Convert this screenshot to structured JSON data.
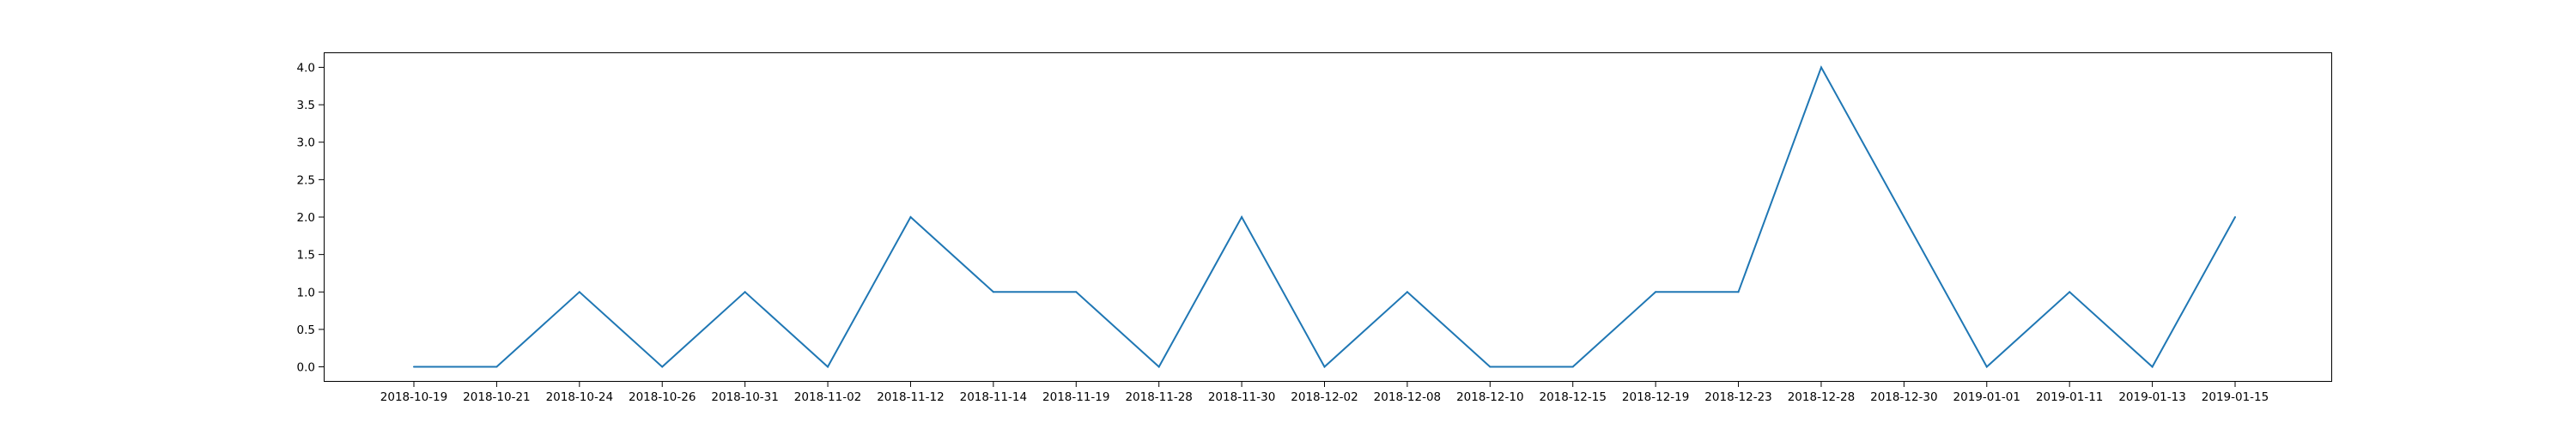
{
  "chart_data": {
    "type": "line",
    "title": "",
    "xlabel": "",
    "ylabel": "",
    "categories": [
      "2018-10-19",
      "2018-10-21",
      "2018-10-24",
      "2018-10-26",
      "2018-10-31",
      "2018-11-02",
      "2018-11-12",
      "2018-11-14",
      "2018-11-19",
      "2018-11-28",
      "2018-11-30",
      "2018-12-02",
      "2018-12-08",
      "2018-12-10",
      "2018-12-15",
      "2018-12-19",
      "2018-12-23",
      "2018-12-28",
      "2018-12-30",
      "2019-01-01",
      "2019-01-11",
      "2019-01-13",
      "2019-01-15"
    ],
    "series": [
      {
        "values": [
          0,
          0,
          1,
          0,
          1,
          0,
          2,
          1,
          1,
          0,
          2,
          0,
          1,
          0,
          0,
          1,
          1,
          4,
          2,
          0,
          1,
          0,
          2
        ]
      }
    ],
    "yticks": [
      "0.0",
      "0.5",
      "1.0",
      "1.5",
      "2.0",
      "2.5",
      "3.0",
      "3.5",
      "4.0"
    ],
    "ylim": [
      -0.2,
      4.2
    ],
    "grid": false,
    "legend": "none",
    "line_color": "#1f77b4"
  }
}
